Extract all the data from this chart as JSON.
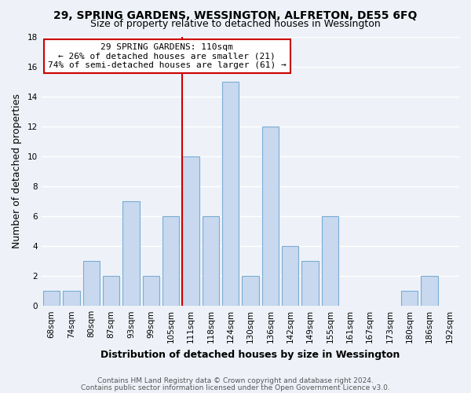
{
  "title": "29, SPRING GARDENS, WESSINGTON, ALFRETON, DE55 6FQ",
  "subtitle": "Size of property relative to detached houses in Wessington",
  "xlabel": "Distribution of detached houses by size in Wessington",
  "ylabel": "Number of detached properties",
  "bin_labels": [
    "68sqm",
    "74sqm",
    "80sqm",
    "87sqm",
    "93sqm",
    "99sqm",
    "105sqm",
    "111sqm",
    "118sqm",
    "124sqm",
    "130sqm",
    "136sqm",
    "142sqm",
    "149sqm",
    "155sqm",
    "161sqm",
    "167sqm",
    "173sqm",
    "180sqm",
    "186sqm",
    "192sqm"
  ],
  "bar_heights": [
    1,
    1,
    3,
    2,
    7,
    2,
    6,
    10,
    6,
    15,
    2,
    12,
    4,
    3,
    6,
    0,
    0,
    0,
    1,
    2,
    0
  ],
  "bar_color": "#c8d8ee",
  "bar_edge_color": "#7aadd4",
  "vline_index": 7,
  "vline_color": "#cc0000",
  "ylim": [
    0,
    18
  ],
  "yticks": [
    0,
    2,
    4,
    6,
    8,
    10,
    12,
    14,
    16,
    18
  ],
  "annotation_title": "29 SPRING GARDENS: 110sqm",
  "annotation_line1": "← 26% of detached houses are smaller (21)",
  "annotation_line2": "74% of semi-detached houses are larger (61) →",
  "annotation_box_facecolor": "#ffffff",
  "annotation_box_edgecolor": "#cc0000",
  "footer1": "Contains HM Land Registry data © Crown copyright and database right 2024.",
  "footer2": "Contains public sector information licensed under the Open Government Licence v3.0.",
  "fig_facecolor": "#eef2f8",
  "ax_facecolor": "#eef2f8",
  "grid_color": "#ffffff",
  "title_fontsize": 10,
  "subtitle_fontsize": 9,
  "axis_label_fontsize": 9,
  "tick_fontsize": 7.5,
  "annotation_fontsize": 8,
  "footer_fontsize": 6.5
}
